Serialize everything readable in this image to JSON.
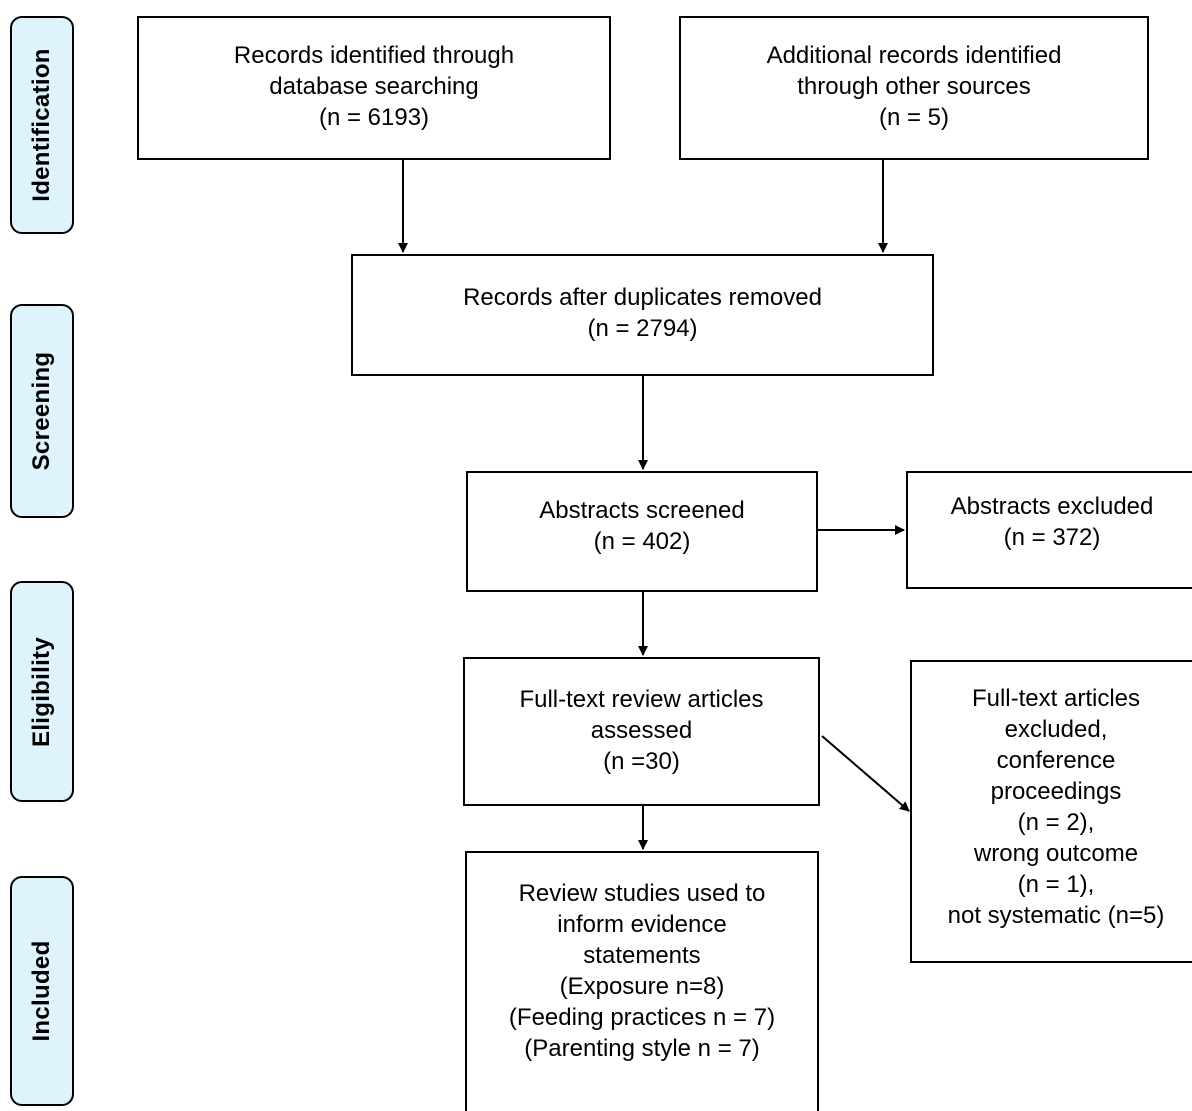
{
  "phases": {
    "identification": "Identification",
    "screening": "Screening",
    "eligibility": "Eligibility",
    "included": "Included"
  },
  "boxes": {
    "database": {
      "lines": [
        "Records identified through",
        "database searching",
        "(n = 6193)"
      ]
    },
    "other_sources": {
      "lines": [
        "Additional records identified",
        "through other sources",
        "(n = 5)"
      ]
    },
    "duplicates_removed": {
      "lines": [
        "Records after duplicates removed",
        "(n = 2794)"
      ]
    },
    "abstracts_screened": {
      "lines": [
        "Abstracts screened",
        "(n = 402)"
      ]
    },
    "abstracts_excluded": {
      "lines": [
        "Abstracts excluded",
        "(n = 372)"
      ]
    },
    "fulltext_assessed": {
      "lines": [
        "Full-text review articles",
        "assessed",
        "(n =30)"
      ]
    },
    "fulltext_excluded": {
      "lines": [
        "Full-text articles",
        "excluded,",
        "conference",
        "proceedings",
        "(n = 2),",
        "wrong outcome",
        "(n = 1),",
        "not systematic (n=5)"
      ]
    },
    "included_studies": {
      "lines": [
        "Review studies used to",
        "inform evidence",
        "statements",
        "(Exposure n=8)",
        "(Feeding practices n = 7)",
        "(Parenting style n = 7)"
      ]
    }
  },
  "colors": {
    "phase_fill": "#dff3fd",
    "stroke": "#000000"
  }
}
